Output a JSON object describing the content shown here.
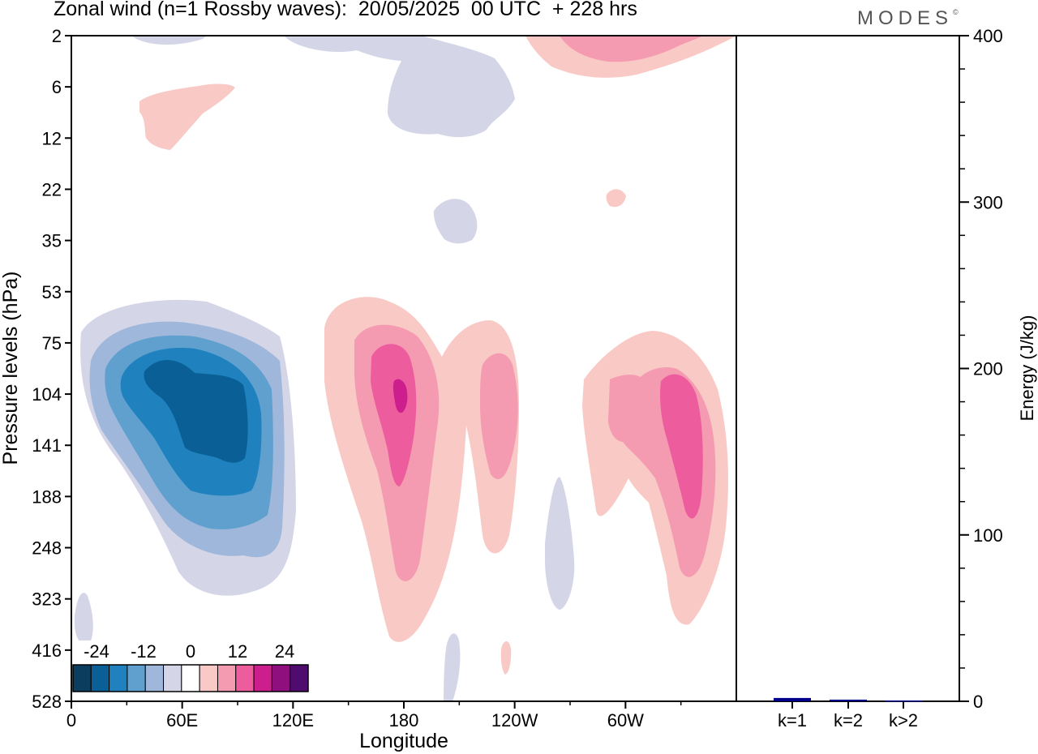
{
  "header": {
    "title": "Zonal wind (n=1 Rossby waves):  20/05/2025  00 UTC  + 228 hrs",
    "brand": "MODES",
    "brand_mark": "©"
  },
  "chart_data": [
    {
      "type": "heatmap",
      "title": "Zonal wind (n=1 Rossby waves):  20/05/2025  00 UTC  + 228 hrs",
      "xlabel": "Longitude",
      "ylabel": "Pressure levels (hPa)",
      "x_ticks": [
        "0",
        "60E",
        "120E",
        "180",
        "120W",
        "60W"
      ],
      "x_tick_values": [
        0,
        60,
        120,
        180,
        240,
        300
      ],
      "xlim": [
        0,
        360
      ],
      "y_ticks": [
        "2",
        "6",
        "12",
        "22",
        "35",
        "53",
        "75",
        "104",
        "141",
        "188",
        "248",
        "323",
        "416",
        "528"
      ],
      "y_scale": "categorical (model levels, pressure increasing downward)",
      "colorbar": {
        "labels": [
          "-24",
          "-12",
          "0",
          "12",
          "24"
        ],
        "levels": [
          -30,
          -25,
          -20,
          -15,
          -10,
          -5,
          0,
          5,
          10,
          15,
          20,
          25,
          30
        ],
        "colors": [
          "#0b3d5e",
          "#0a5f96",
          "#1f82bf",
          "#5fa0cf",
          "#9fb7da",
          "#d4d6e8",
          "#ffffff",
          "#f9c9c6",
          "#f59bb1",
          "#ed5d9d",
          "#cc1f8d",
          "#8f0f7f",
          "#4f0b6e"
        ]
      },
      "features": [
        {
          "sign": "negative",
          "center_lon": 70,
          "center_level": "141",
          "peak": -25
        },
        {
          "sign": "positive",
          "center_lon": 178,
          "center_level": "104",
          "peak": 22
        },
        {
          "sign": "positive",
          "center_lon": 230,
          "center_level": "141",
          "peak": 10
        },
        {
          "sign": "positive",
          "center_lon": 333,
          "center_level": "141",
          "peak": 17
        },
        {
          "sign": "negative",
          "center_lon": 205,
          "center_level": "6",
          "peak": -5
        },
        {
          "sign": "positive",
          "center_lon": 325,
          "center_level": "2",
          "peak": 10
        },
        {
          "sign": "positive",
          "center_lon": 55,
          "center_level": "12",
          "peak": 5
        },
        {
          "sign": "negative",
          "center_lon": 262,
          "center_level": "248",
          "peak": -5
        }
      ]
    },
    {
      "type": "bar",
      "categories": [
        "k=1",
        "k=2",
        "k>2"
      ],
      "values": [
        2,
        1,
        0.5
      ],
      "ylabel": "Energy (J/kg)",
      "ylim": [
        0,
        400
      ],
      "y_ticks": [
        "0",
        "100",
        "200",
        "300",
        "400"
      ],
      "bar_color": "#00008b"
    }
  ]
}
